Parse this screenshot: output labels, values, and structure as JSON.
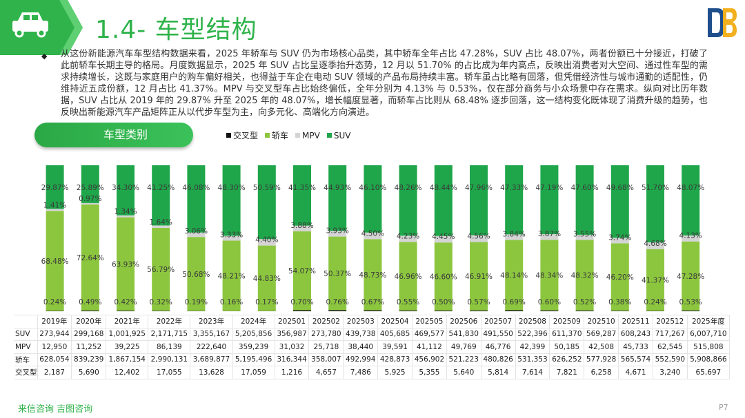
{
  "header": {
    "title": "1.4- 车型结构",
    "brand_color": "#2fb34a"
  },
  "summary": {
    "text": "从这份新能源汽车车型结构数据来看，2025 年轿车与 SUV 仍为市场核心品类，其中轿车全年占比 47.28%，SUV 占比 48.07%，两者份额已十分接近，打破了此前轿车长期主导的格局。月度数据显示，2025 年 SUV 占比呈逐季抬升态势，12 月以 51.70% 的占比成为年内高点，反映出消费者对大空间、通过性车型的需求持续增长，这既与家庭用户的购车偏好相关，也得益于车企在电动 SUV 领域的产品布局持续丰富。轿车虽占比略有回落，但凭借经济性与城市通勤的适配性，仍维持近五成份额，12 月占比 41.37%。MPV 与交叉型车占比始终偏低，全年分别为 4.13% 与 0.53%，仅在部分商务与小众场景中存在需求。纵向对比历年数据，SUV 占比从 2019 年的 29.87% 升至 2025 年的 48.07%，增长幅度显著，而轿车占比则从 68.48% 逐步回落，这一结构变化既体现了消费升级的趋势，也反映出新能源汽车产品矩阵正从以代步车型为主，向多元化、高端化方向演进。"
  },
  "chart_section": {
    "pill_label": "车型类别"
  },
  "chart_data": {
    "type": "bar",
    "stacked": "percent",
    "categories": [
      "2019年",
      "2020年",
      "2021年",
      "2022年",
      "2023年",
      "2024年",
      "202501",
      "202502",
      "202503",
      "202504",
      "202505",
      "202506",
      "202507",
      "202508",
      "202509",
      "202510",
      "202511",
      "202512",
      "2025年度"
    ],
    "series": [
      {
        "name": "交叉型",
        "color": "#111111",
        "values": [
          "0.24%",
          "0.49%",
          "0.42%",
          "0.32%",
          "0.19%",
          "0.16%",
          "0.17%",
          "0.70%",
          "0.76%",
          "0.67%",
          "0.55%",
          "0.50%",
          "0.57%",
          "0.69%",
          "0.60%",
          "0.52%",
          "0.38%",
          "0.24%",
          "0.53%"
        ]
      },
      {
        "name": "轿车",
        "color": "#8cc63f",
        "values": [
          "68.48%",
          "72.64%",
          "63.93%",
          "56.79%",
          "50.68%",
          "48.21%",
          "44.83%",
          "54.07%",
          "50.37%",
          "48.73%",
          "46.96%",
          "46.60%",
          "46.91%",
          "48.14%",
          "48.34%",
          "48.32%",
          "46.20%",
          "41.37%",
          "47.28%"
        ]
      },
      {
        "name": "MPV",
        "color": "#d4d4d4",
        "values": [
          "1.41%",
          "0.97%",
          "1.34%",
          "1.64%",
          "3.06%",
          "3.33%",
          "4.40%",
          "3.88%",
          "3.93%",
          "4.50%",
          "4.23%",
          "4.45%",
          "4.56%",
          "3.84%",
          "3.87%",
          "3.55%",
          "3.74%",
          "4.68%",
          "4.13%"
        ]
      },
      {
        "name": "SUV",
        "color": "#1fa64a",
        "values": [
          "29.87%",
          "25.89%",
          "34.30%",
          "41.25%",
          "46.08%",
          "48.30%",
          "50.59%",
          "41.35%",
          "44.93%",
          "46.10%",
          "48.26%",
          "48.44%",
          "47.96%",
          "47.33%",
          "47.19%",
          "47.60%",
          "49.68%",
          "51.70%",
          "48.07%"
        ]
      }
    ],
    "table": {
      "row_labels": [
        "SUV",
        "MPV",
        "轿车",
        "交叉型"
      ],
      "rows": [
        [
          "273,944",
          "299,168",
          "1,001,925",
          "2,171,715",
          "3,355,167",
          "5,205,856",
          "356,987",
          "273,780",
          "439,738",
          "405,685",
          "469,577",
          "541,830",
          "491,550",
          "522,396",
          "611,370",
          "569,287",
          "608,243",
          "717,267",
          "6,007,710"
        ],
        [
          "12,950",
          "11,252",
          "39,225",
          "86,139",
          "222,640",
          "359,239",
          "31,032",
          "25,718",
          "38,440",
          "39,591",
          "41,112",
          "49,769",
          "46,776",
          "42,399",
          "50,185",
          "42,508",
          "45,733",
          "62,545",
          "515,808"
        ],
        [
          "628,054",
          "839,239",
          "1,867,154",
          "2,990,131",
          "3,689,877",
          "5,195,496",
          "316,344",
          "358,007",
          "492,994",
          "428,873",
          "456,902",
          "521,223",
          "480,826",
          "531,353",
          "626,252",
          "577,928",
          "565,574",
          "552,590",
          "5,908,866"
        ],
        [
          "2,187",
          "5,690",
          "12,402",
          "17,055",
          "13,628",
          "17,059",
          "1,216",
          "4,657",
          "7,486",
          "5,925",
          "5,355",
          "5,640",
          "5,814",
          "7,614",
          "7,821",
          "6,258",
          "4,671",
          "3,240",
          "65,697"
        ]
      ]
    }
  },
  "footer": {
    "source": "来信咨询  吉图咨询",
    "page": "P7"
  }
}
